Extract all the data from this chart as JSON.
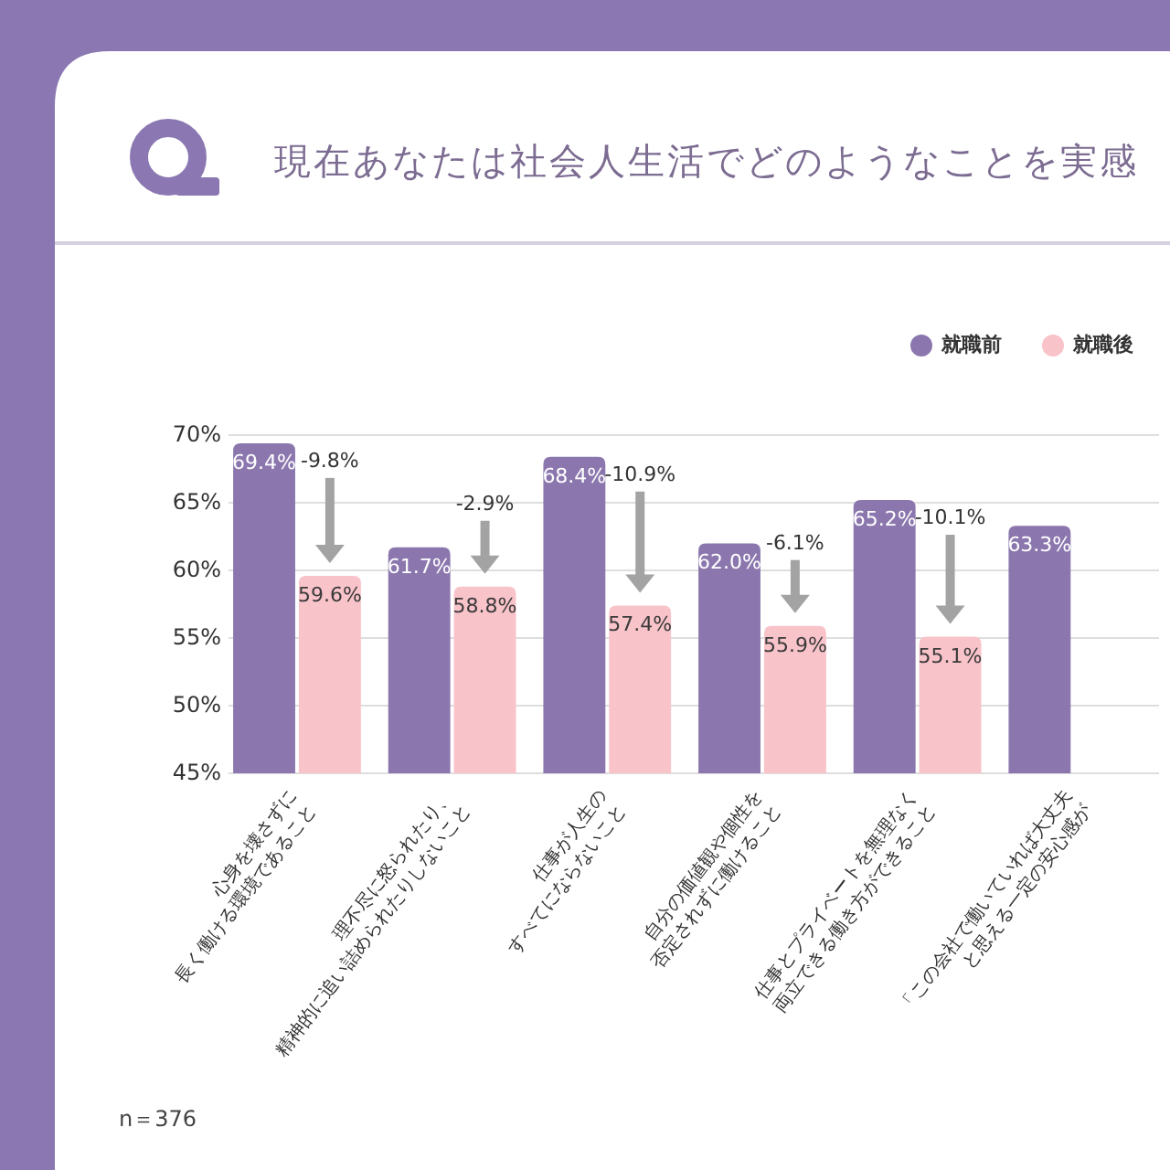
{
  "chart_data": {
    "type": "bar",
    "title": "現在あなたは社会人生活でどのようなことを実感",
    "categories": [
      "心身を壊さずに\n長く働ける環境であること",
      "理不尽に怒られたり、\n精神的に追い詰められたりしないこと",
      "仕事が人生の\nすべてにならないこと",
      "自分の価値観や個性を\n否定されずに働けること",
      "仕事とプライベートを無理なく\n両立できる働き方ができること",
      "「この会社で働いていれば大丈夫\nと思える一定の安心感が"
    ],
    "series": [
      {
        "name": "就職前",
        "color": "#8b77ae",
        "values": [
          69.4,
          61.7,
          68.4,
          62.0,
          65.2,
          63.3
        ],
        "value_labels": [
          "69.4%",
          "61.7%",
          "68.4%",
          "62.0%",
          "65.2%",
          "63.3%"
        ]
      },
      {
        "name": "就職後",
        "color": "#f9c3ca",
        "values": [
          59.6,
          58.8,
          57.4,
          55.9,
          55.1,
          null
        ],
        "value_labels": [
          "59.6%",
          "58.8%",
          "57.4%",
          "55.9%",
          "55.1%",
          null
        ]
      }
    ],
    "ylim": [
      45,
      70
    ],
    "yticks": [
      {
        "value": 45,
        "label": "45%"
      },
      {
        "value": 50,
        "label": "50%"
      },
      {
        "value": 55,
        "label": "55%"
      },
      {
        "value": 60,
        "label": "60%"
      },
      {
        "value": 65,
        "label": "65%"
      },
      {
        "value": 70,
        "label": "70%"
      }
    ],
    "grid": "y",
    "legend": "top right",
    "annotations": [
      "-9.8%",
      "-2.9%",
      "-10.9%",
      "-6.1%",
      "-10.1%",
      "n＝376"
    ]
  }
}
